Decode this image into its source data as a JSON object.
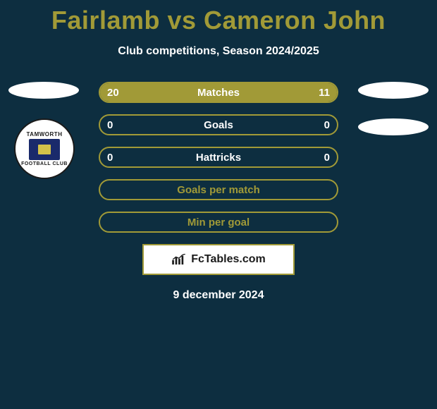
{
  "colors": {
    "background": "#0d2e40",
    "accent": "#a19a37",
    "text_light": "#ffffff",
    "badge_bg": "#ffffff",
    "badge_shield": "#1a2a6b",
    "badge_shield_inner": "#d4c24a",
    "brand_bg": "#ffffff",
    "brand_border": "#a19a37",
    "brand_text": "#1a1a1a"
  },
  "header": {
    "title": "Fairlamb vs Cameron John",
    "subtitle": "Club competitions, Season 2024/2025"
  },
  "badge": {
    "top_text": "TAMWORTH",
    "bottom_text": "FOOTBALL CLUB"
  },
  "rows": [
    {
      "type": "compare",
      "label": "Matches",
      "left_value": "20",
      "right_value": "11",
      "left_fill_pct": 64,
      "right_fill_pct": 36,
      "fill_color": "#a19a37",
      "border_color": "#a19a37"
    },
    {
      "type": "compare",
      "label": "Goals",
      "left_value": "0",
      "right_value": "0",
      "left_fill_pct": 0,
      "right_fill_pct": 0,
      "fill_color": "#a19a37",
      "border_color": "#a19a37"
    },
    {
      "type": "compare",
      "label": "Hattricks",
      "left_value": "0",
      "right_value": "0",
      "left_fill_pct": 0,
      "right_fill_pct": 0,
      "fill_color": "#a19a37",
      "border_color": "#a19a37"
    },
    {
      "type": "label_only",
      "label": "Goals per match",
      "border_color": "#a19a37"
    },
    {
      "type": "label_only",
      "label": "Min per goal",
      "border_color": "#a19a37"
    }
  ],
  "brand": {
    "text": "FcTables.com"
  },
  "footer": {
    "date": "9 december 2024"
  }
}
